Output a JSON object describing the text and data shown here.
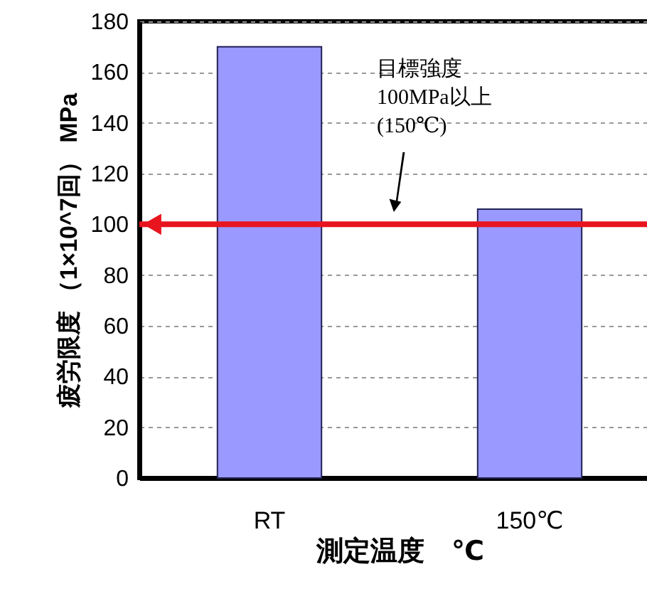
{
  "chart_data": {
    "type": "bar",
    "xlabel": "測定温度　℃",
    "ylabel": "疲労限度 （1×10^7回） MPa",
    "categories": [
      "RT",
      "150℃"
    ],
    "series": [
      {
        "color": "#9999ff",
        "values": [
          170,
          106
        ]
      }
    ],
    "ylim": [
      0,
      180
    ],
    "yticks": [
      0,
      20,
      40,
      60,
      80,
      100,
      120,
      140,
      160,
      180
    ],
    "grid": "y",
    "ref_lines": [
      {
        "axis": "y",
        "value": 100,
        "color": "#e8141e"
      }
    ],
    "annotations": [
      "目標強度\n100MPa以上\n(150℃)"
    ]
  }
}
